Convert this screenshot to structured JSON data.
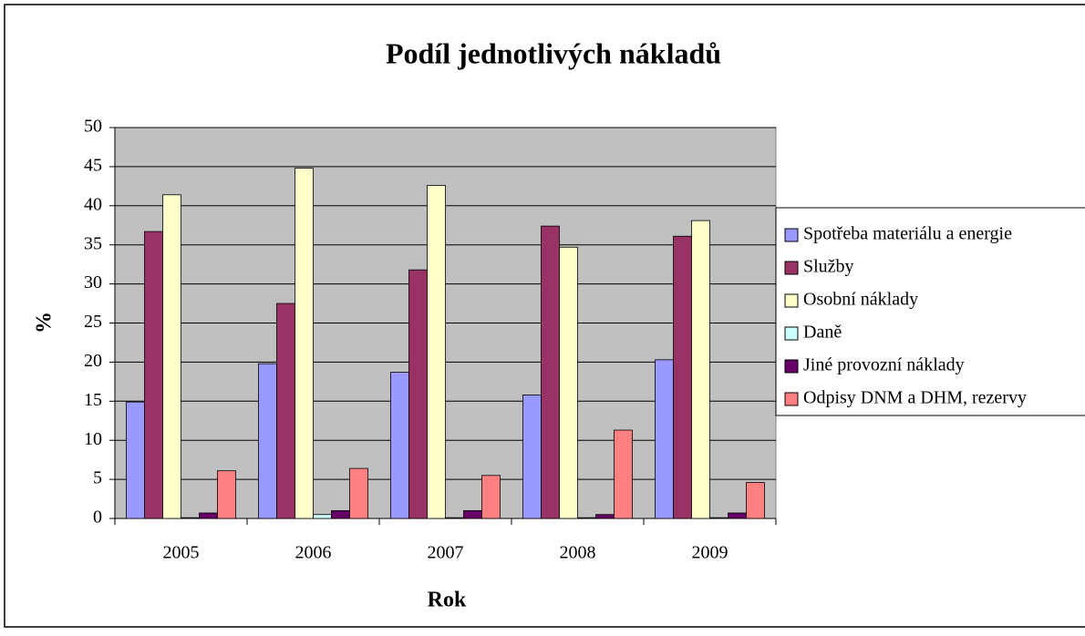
{
  "chart_data": {
    "type": "bar",
    "title": "Podíl jednotlivých nákladů",
    "x_label": "Rok",
    "y_label": "%",
    "categories": [
      "2005",
      "2006",
      "2007",
      "2008",
      "2009"
    ],
    "series": [
      {
        "name": "Spotřeba materiálu a energie",
        "color": "#9999ff",
        "values": [
          14.9,
          19.8,
          18.7,
          15.8,
          20.3
        ]
      },
      {
        "name": "Služby",
        "color": "#993366",
        "values": [
          36.7,
          27.5,
          31.8,
          37.4,
          36.1
        ]
      },
      {
        "name": "Osobní náklady",
        "color": "#ffffcc",
        "values": [
          41.4,
          44.8,
          42.6,
          34.7,
          38.1
        ]
      },
      {
        "name": "Daně",
        "color": "#ccffff",
        "values": [
          0.1,
          0.5,
          0.1,
          0.1,
          0.1
        ]
      },
      {
        "name": "Jiné provozní náklady",
        "color": "#660066",
        "values": [
          0.7,
          1.0,
          1.0,
          0.5,
          0.7
        ]
      },
      {
        "name": "Odpisy DNM a DHM, rezervy",
        "color": "#ff8080",
        "values": [
          6.1,
          6.4,
          5.5,
          11.3,
          4.6
        ]
      }
    ],
    "ylim": [
      0,
      50
    ],
    "yticks": [
      0,
      5,
      10,
      15,
      20,
      25,
      30,
      35,
      40,
      45,
      50
    ],
    "grid": true,
    "legend": "right"
  }
}
